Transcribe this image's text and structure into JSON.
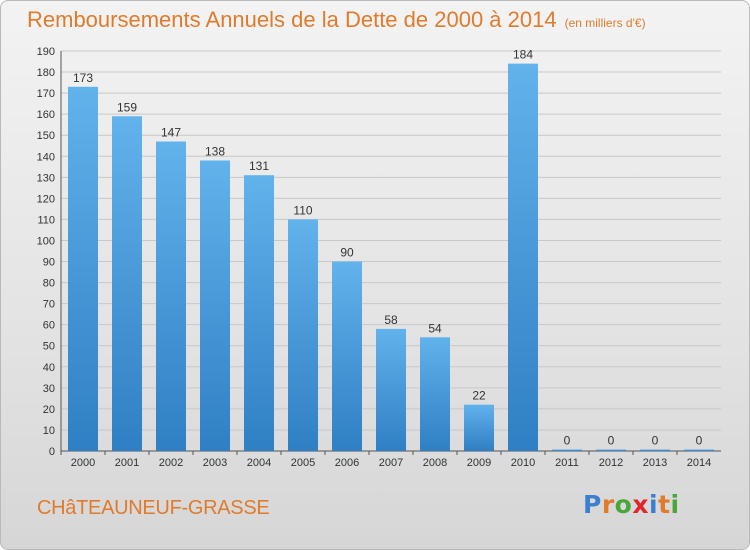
{
  "header": {
    "title": "Remboursements Annuels de la Dette de 2000 à 2014",
    "unit": "(en milliers d'€)"
  },
  "footer": {
    "commune": "CHâTEAUNEUF-GRASSE",
    "logo": [
      "P",
      "r",
      "o",
      "x",
      "i",
      "t",
      "i"
    ],
    "logo_colors": [
      "#3a7fd0",
      "#e07b2c",
      "#4aa53b",
      "#e2262b",
      "#3a7fd0",
      "#e07b2c",
      "#4aa53b"
    ]
  },
  "colors": {
    "bar": "#3f94d8",
    "bar_highlight": "#62b2ec",
    "title": "#e07b2c",
    "grid": "#c8c8c8"
  },
  "chart_data": {
    "type": "bar",
    "categories": [
      "2000",
      "2001",
      "2002",
      "2003",
      "2004",
      "2005",
      "2006",
      "2007",
      "2008",
      "2009",
      "2010",
      "2011",
      "2012",
      "2013",
      "2014"
    ],
    "values": [
      173,
      159,
      147,
      138,
      131,
      110,
      90,
      58,
      54,
      22,
      184,
      0,
      0,
      0,
      0
    ],
    "data_labels": [
      "173",
      "159",
      "147",
      "138",
      "131",
      "110",
      "90",
      "58",
      "54",
      "22",
      "184",
      "0",
      "0",
      "0",
      "0"
    ],
    "title": "Remboursements Annuels de la Dette de 2000 à 2014",
    "xlabel": "",
    "ylabel": "",
    "ylim": [
      0,
      190
    ],
    "yticks": [
      0,
      10,
      20,
      30,
      40,
      50,
      60,
      70,
      80,
      90,
      100,
      110,
      120,
      130,
      140,
      150,
      160,
      170,
      180,
      190
    ],
    "grid": true
  }
}
